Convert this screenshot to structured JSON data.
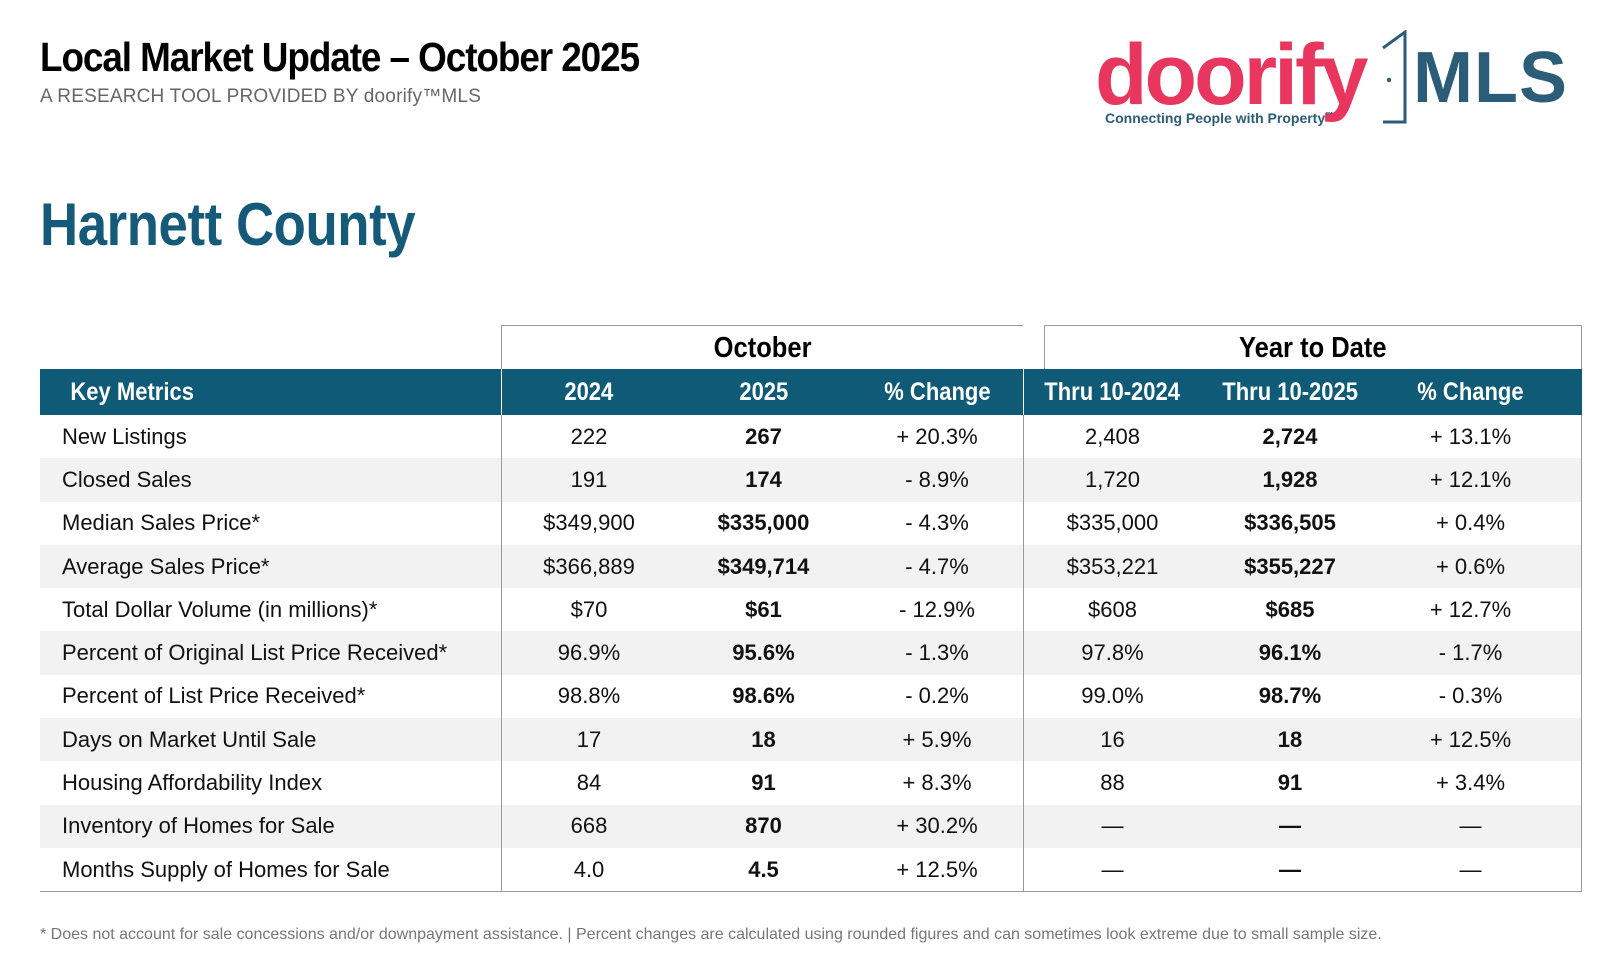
{
  "header": {
    "title": "Local Market Update – October 2025",
    "subtitle": "A RESEARCH TOOL PROVIDED BY doorify™MLS",
    "county": "Harnett County"
  },
  "logo": {
    "brand": "doorify",
    "mls": "MLS",
    "tagline": "Connecting People with Property",
    "trademark": "™",
    "brand_color": "#e8365e",
    "mls_color": "#2b5d78"
  },
  "colors": {
    "header_bg": "#0e5a77",
    "county_title": "#155a78",
    "alt_row": "#f2f2f2"
  },
  "table": {
    "group_headers": {
      "october": "October",
      "ytd": "Year to Date"
    },
    "columns": [
      "Key Metrics",
      "2024",
      "2025",
      "% Change",
      "Thru 10-2024",
      "Thru 10-2025",
      "% Change"
    ],
    "rows": [
      [
        "New Listings",
        "222",
        "267",
        "+ 20.3%",
        "2,408",
        "2,724",
        "+ 13.1%"
      ],
      [
        "Closed Sales",
        "191",
        "174",
        "- 8.9%",
        "1,720",
        "1,928",
        "+ 12.1%"
      ],
      [
        "Median Sales Price*",
        "$349,900",
        "$335,000",
        "- 4.3%",
        "$335,000",
        "$336,505",
        "+ 0.4%"
      ],
      [
        "Average Sales Price*",
        "$366,889",
        "$349,714",
        "- 4.7%",
        "$353,221",
        "$355,227",
        "+ 0.6%"
      ],
      [
        "Total Dollar Volume (in millions)*",
        "$70",
        "$61",
        "- 12.9%",
        "$608",
        "$685",
        "+ 12.7%"
      ],
      [
        "Percent of Original List Price Received*",
        "96.9%",
        "95.6%",
        "- 1.3%",
        "97.8%",
        "96.1%",
        "- 1.7%"
      ],
      [
        "Percent of List Price Received*",
        "98.8%",
        "98.6%",
        "- 0.2%",
        "99.0%",
        "98.7%",
        "- 0.3%"
      ],
      [
        "Days on Market Until Sale",
        "17",
        "18",
        "+ 5.9%",
        "16",
        "18",
        "+ 12.5%"
      ],
      [
        "Housing Affordability Index",
        "84",
        "91",
        "+ 8.3%",
        "88",
        "91",
        "+ 3.4%"
      ],
      [
        "Inventory of Homes for Sale",
        "668",
        "870",
        "+ 30.2%",
        "—",
        "—",
        "—"
      ],
      [
        "Months Supply of Homes for Sale",
        "4.0",
        "4.5",
        "+ 12.5%",
        "—",
        "—",
        "—"
      ]
    ]
  },
  "footnote": "* Does not account for sale concessions and/or downpayment assistance. | Percent changes are calculated using rounded figures and can sometimes look extreme due to small sample size."
}
